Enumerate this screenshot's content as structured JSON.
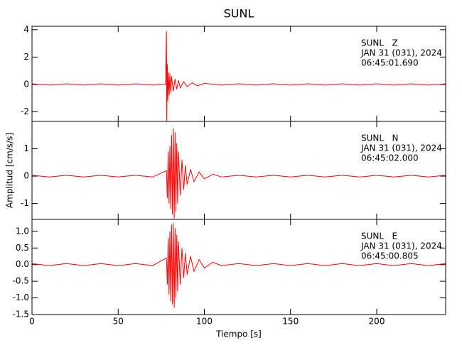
{
  "chart_data": [
    {
      "type": "line",
      "title": "SUNL",
      "color": "#ff0000",
      "annotations": [
        "SUNL   Z",
        "JAN 31 (031), 2024",
        "06:45:01.690"
      ],
      "x": [
        0,
        10,
        20,
        30,
        40,
        50,
        60,
        70,
        77.5,
        78,
        78.2,
        78.5,
        78.8,
        79.2,
        79.6,
        80,
        80.5,
        81,
        82,
        83,
        84,
        85,
        86,
        88,
        90,
        93,
        96,
        100,
        110,
        120,
        130,
        140,
        150,
        160,
        170,
        180,
        190,
        200,
        210,
        220,
        230,
        240
      ],
      "values": [
        0.05,
        -0.05,
        0.05,
        -0.05,
        0.05,
        -0.05,
        0.05,
        -0.05,
        0,
        3.9,
        -2.7,
        1.5,
        -1.2,
        0.9,
        -0.8,
        0.8,
        -0.6,
        0.6,
        -0.5,
        0.4,
        -0.35,
        0.3,
        -0.25,
        0.2,
        -0.15,
        0.12,
        -0.1,
        0.08,
        -0.05,
        0.05,
        -0.05,
        0.05,
        -0.05,
        0.05,
        -0.05,
        0.05,
        -0.05,
        0.05,
        -0.05,
        0.05,
        -0.05,
        0.05
      ],
      "xlim": [
        0,
        240
      ],
      "xticks": [
        0,
        50,
        100,
        150,
        200
      ],
      "ylim": [
        -2.7,
        4.25
      ],
      "yticks": [
        4,
        2,
        0,
        -2
      ]
    },
    {
      "type": "line",
      "ylabel": "Amplitud [cm/s/s]",
      "color": "#ff0000",
      "annotations": [
        "SUNL   N",
        "JAN 31 (031), 2024",
        "06:45:02.000"
      ],
      "x": [
        0,
        10,
        20,
        30,
        40,
        50,
        60,
        70,
        78,
        78.5,
        79,
        79.5,
        80,
        80.5,
        81,
        81.5,
        82,
        82.5,
        83,
        83.5,
        84,
        84.5,
        85,
        86,
        87,
        88,
        89,
        90,
        92,
        94,
        97,
        100,
        105,
        110,
        120,
        130,
        140,
        150,
        160,
        170,
        180,
        190,
        200,
        210,
        220,
        230,
        240
      ],
      "values": [
        0.03,
        -0.03,
        0.03,
        -0.03,
        0.03,
        -0.03,
        0.03,
        -0.03,
        0.2,
        -0.8,
        0.9,
        -1.0,
        1.1,
        -1.2,
        1.5,
        -1.4,
        1.75,
        -1.55,
        1.6,
        -1.3,
        1.2,
        -1.0,
        0.9,
        -0.7,
        0.6,
        -0.5,
        0.4,
        -0.3,
        0.25,
        -0.2,
        0.15,
        -0.1,
        0.07,
        -0.03,
        0.03,
        -0.03,
        0.03,
        -0.03,
        0.03,
        -0.03,
        0.03,
        -0.03,
        0.03,
        -0.03,
        0.03,
        -0.03,
        0.03
      ],
      "xlim": [
        0,
        240
      ],
      "xticks": [
        0,
        50,
        100,
        150,
        200
      ],
      "ylim": [
        -1.58,
        2.0
      ],
      "yticks": [
        1,
        0,
        -1
      ]
    },
    {
      "type": "line",
      "xlabel": "Tiempo [s]",
      "color": "#ff0000",
      "annotations": [
        "SUNL   E",
        "JAN 31 (031), 2024",
        "06:45:00.805"
      ],
      "x": [
        0,
        10,
        20,
        30,
        40,
        50,
        60,
        70,
        78,
        78.5,
        79,
        79.5,
        80,
        80.5,
        81,
        81.5,
        82,
        82.5,
        83,
        83.5,
        84,
        84.5,
        85,
        86,
        87,
        88,
        89,
        90,
        92,
        94,
        97,
        100,
        105,
        110,
        120,
        130,
        140,
        150,
        160,
        170,
        180,
        190,
        200,
        210,
        220,
        230,
        240
      ],
      "values": [
        0.03,
        -0.03,
        0.03,
        -0.03,
        0.03,
        -0.03,
        0.03,
        -0.03,
        0.2,
        -0.6,
        0.8,
        -0.9,
        1.0,
        -1.1,
        1.2,
        -1.2,
        1.25,
        -1.3,
        1.1,
        -1.0,
        0.9,
        -0.8,
        0.7,
        -0.6,
        0.5,
        -0.4,
        0.35,
        -0.3,
        0.25,
        -0.2,
        0.15,
        -0.1,
        0.07,
        -0.03,
        0.03,
        -0.03,
        0.03,
        -0.03,
        0.03,
        -0.03,
        0.03,
        -0.03,
        0.03,
        -0.03,
        0.03,
        -0.03,
        0.03
      ],
      "xlim": [
        0,
        240
      ],
      "xticks": [
        0,
        50,
        100,
        150,
        200
      ],
      "ylim": [
        -1.5,
        1.36
      ],
      "yticks": [
        {
          "value": 1,
          "label": "1.0"
        },
        0.5,
        {
          "value": 0,
          "label": "0.0"
        },
        -0.5,
        {
          "value": -1,
          "label": "-1.0"
        },
        -1.5
      ]
    }
  ]
}
